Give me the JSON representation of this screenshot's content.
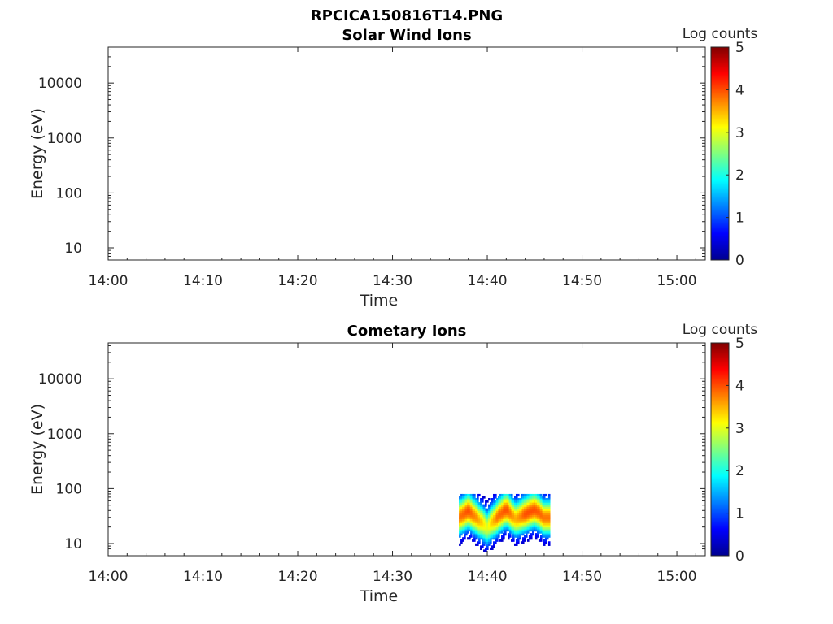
{
  "figure": {
    "title": "RPCICA150816T14.PNG"
  },
  "chart_data": [
    {
      "type": "heatmap",
      "title": "Solar Wind Ions",
      "xlabel": "Time",
      "ylabel": "Energy (eV)",
      "y_scale": "log",
      "y_range": [
        6,
        45000
      ],
      "x_range": [
        "14:00",
        "15:03"
      ],
      "x_ticks": [
        "14:00",
        "14:10",
        "14:20",
        "14:30",
        "14:40",
        "14:50",
        "15:00"
      ],
      "y_ticks": [
        "10",
        "100",
        "1000",
        "10000"
      ],
      "colorbar": {
        "label": "Log counts",
        "range": [
          0,
          5
        ],
        "ticks": [
          "0",
          "1",
          "2",
          "3",
          "4",
          "5"
        ],
        "colormap": "jet"
      },
      "data_present": false,
      "data": []
    },
    {
      "type": "heatmap",
      "title": "Cometary Ions",
      "xlabel": "Time",
      "ylabel": "Energy (eV)",
      "y_scale": "log",
      "y_range": [
        6,
        45000
      ],
      "x_range": [
        "14:00",
        "15:03"
      ],
      "x_ticks": [
        "14:00",
        "14:10",
        "14:20",
        "14:30",
        "14:40",
        "14:50",
        "15:00"
      ],
      "y_ticks": [
        "10",
        "100",
        "1000",
        "10000"
      ],
      "colorbar": {
        "label": "Log counts",
        "range": [
          0,
          5
        ],
        "ticks": [
          "0",
          "1",
          "2",
          "3",
          "4",
          "5"
        ],
        "colormap": "jet"
      },
      "data_present": true,
      "data_time_range": [
        "14:37",
        "14:46"
      ],
      "data_energy_range": [
        6,
        80
      ],
      "peak_log_counts": 4,
      "data": [
        {
          "time": "14:37",
          "energy_peak": 30,
          "log_counts_peak": 3.8
        },
        {
          "time": "14:38",
          "energy_peak": 40,
          "log_counts_peak": 4.0
        },
        {
          "time": "14:39",
          "energy_peak": 28,
          "log_counts_peak": 3.6
        },
        {
          "time": "14:40",
          "energy_peak": 20,
          "log_counts_peak": 3.0
        },
        {
          "time": "14:41",
          "energy_peak": 30,
          "log_counts_peak": 3.8
        },
        {
          "time": "14:42",
          "energy_peak": 42,
          "log_counts_peak": 4.0
        },
        {
          "time": "14:43",
          "energy_peak": 28,
          "log_counts_peak": 3.5
        },
        {
          "time": "14:44",
          "energy_peak": 35,
          "log_counts_peak": 4.0
        },
        {
          "time": "14:45",
          "energy_peak": 42,
          "log_counts_peak": 4.0
        },
        {
          "time": "14:46",
          "energy_peak": 30,
          "log_counts_peak": 3.8
        }
      ]
    }
  ]
}
